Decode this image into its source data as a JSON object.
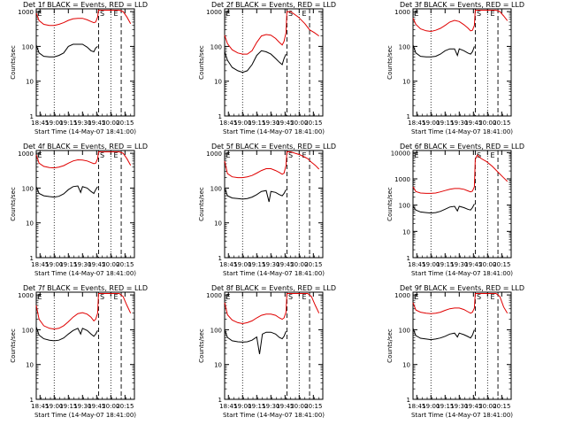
{
  "colors": {
    "events": "#000000",
    "lld": "#e00000",
    "axis": "#000000",
    "background": "#ffffff"
  },
  "shared": {
    "ylabel": "Counts/sec",
    "xlabel": "Start Time (14-May-07 18:41:00)",
    "x_tick_labels": [
      "18:45",
      "19:00",
      "19:15",
      "19:30",
      "19:45",
      "20:00",
      "20:15"
    ],
    "x_tick_minutes": [
      4,
      19,
      34,
      49,
      64,
      79,
      94
    ],
    "x_range_minutes": [
      0,
      104
    ],
    "dotted_markers_minutes": [
      19,
      79
    ],
    "dashed_markers_minutes": [
      66,
      90
    ],
    "marker_labels": [
      {
        "text": "S",
        "minute": 66.5
      },
      {
        "text": "E",
        "minute": 81
      },
      {
        "text": "E",
        "minute": 0.5
      }
    ],
    "y_scale": "log"
  },
  "chart_data": [
    {
      "type": "line",
      "title": "Det 1f BLACK = Events, RED = LLD",
      "y_tick_labels": [
        "1",
        "10",
        "100",
        "1000"
      ],
      "ylim": [
        1,
        1200
      ],
      "series": [
        {
          "name": "Events",
          "x": [
            0,
            3,
            8,
            14,
            19,
            24,
            29,
            34,
            39,
            44,
            49,
            54,
            58,
            61,
            63,
            65
          ],
          "y": [
            110,
            65,
            52,
            50,
            50,
            55,
            65,
            100,
            115,
            115,
            115,
            95,
            75,
            70,
            90,
            100
          ]
        },
        {
          "name": "LLD",
          "x": [
            0,
            3,
            8,
            14,
            19,
            24,
            29,
            34,
            39,
            44,
            49,
            54,
            58,
            61,
            63,
            65,
            66,
            70,
            80,
            88,
            92,
            96,
            100
          ],
          "y": [
            900,
            550,
            430,
            400,
            400,
            430,
            480,
            560,
            620,
            640,
            640,
            580,
            520,
            480,
            500,
            700,
            1100,
            1100,
            1100,
            1100,
            1000,
            700,
            450
          ]
        }
      ]
    },
    {
      "type": "line",
      "title": "Det 2f BLACK = Events, RED = LLD",
      "y_tick_labels": [
        "1",
        "10",
        "100",
        "1000"
      ],
      "ylim": [
        1,
        1200
      ],
      "series": [
        {
          "name": "Events",
          "x": [
            0,
            3,
            8,
            14,
            19,
            24,
            29,
            34,
            39,
            44,
            49,
            54,
            58,
            61,
            63,
            65
          ],
          "y": [
            70,
            40,
            25,
            20,
            18,
            20,
            30,
            55,
            75,
            70,
            60,
            45,
            35,
            30,
            45,
            60
          ]
        },
        {
          "name": "LLD",
          "x": [
            0,
            3,
            8,
            14,
            19,
            24,
            29,
            34,
            39,
            44,
            49,
            54,
            58,
            61,
            63,
            65,
            66,
            70,
            78,
            85,
            90,
            95,
            100
          ],
          "y": [
            210,
            120,
            80,
            65,
            60,
            60,
            75,
            130,
            200,
            220,
            210,
            170,
            130,
            110,
            140,
            250,
            1000,
            1000,
            700,
            450,
            300,
            250,
            200
          ]
        }
      ]
    },
    {
      "type": "line",
      "title": "Det 3f BLACK = Events, RED = LLD",
      "y_tick_labels": [
        "1",
        "10",
        "100",
        "1000"
      ],
      "ylim": [
        1,
        1200
      ],
      "series": [
        {
          "name": "Events",
          "x": [
            0,
            3,
            8,
            14,
            19,
            24,
            29,
            34,
            39,
            44,
            47,
            49,
            54,
            58,
            61,
            63,
            65
          ],
          "y": [
            110,
            65,
            52,
            50,
            50,
            52,
            60,
            75,
            85,
            85,
            55,
            85,
            75,
            65,
            60,
            70,
            100
          ]
        },
        {
          "name": "LLD",
          "x": [
            0,
            3,
            8,
            14,
            19,
            24,
            29,
            34,
            39,
            44,
            49,
            54,
            58,
            61,
            63,
            65,
            66,
            70,
            80,
            88,
            92,
            96,
            100
          ],
          "y": [
            650,
            430,
            320,
            280,
            270,
            290,
            330,
            400,
            500,
            560,
            520,
            420,
            340,
            280,
            290,
            400,
            1100,
            1100,
            1100,
            1100,
            1000,
            750,
            550
          ]
        }
      ]
    },
    {
      "type": "line",
      "title": "Det 4f BLACK = Events, RED = LLD",
      "y_tick_labels": [
        "1",
        "10",
        "100",
        "1000"
      ],
      "ylim": [
        1,
        1200
      ],
      "series": [
        {
          "name": "Events",
          "x": [
            0,
            3,
            8,
            14,
            19,
            24,
            29,
            34,
            39,
            44,
            47,
            49,
            54,
            58,
            61,
            63,
            65
          ],
          "y": [
            110,
            70,
            60,
            57,
            55,
            58,
            68,
            90,
            110,
            115,
            75,
            110,
            100,
            80,
            70,
            90,
            110
          ]
        },
        {
          "name": "LLD",
          "x": [
            0,
            3,
            8,
            14,
            19,
            24,
            29,
            34,
            39,
            44,
            49,
            54,
            58,
            61,
            63,
            65,
            66,
            70,
            80,
            88,
            92,
            96,
            100
          ],
          "y": [
            900,
            520,
            420,
            390,
            380,
            400,
            440,
            520,
            600,
            650,
            640,
            600,
            540,
            500,
            520,
            700,
            1100,
            1100,
            1100,
            1100,
            1000,
            700,
            450
          ]
        }
      ]
    },
    {
      "type": "line",
      "title": "Det 5f BLACK = Events, RED = LLD",
      "y_tick_labels": [
        "1",
        "10",
        "100",
        "1000"
      ],
      "ylim": [
        1,
        1200
      ],
      "series": [
        {
          "name": "Events",
          "x": [
            0,
            3,
            8,
            14,
            19,
            24,
            29,
            34,
            39,
            44,
            47,
            49,
            54,
            58,
            61,
            63,
            65
          ],
          "y": [
            100,
            60,
            52,
            50,
            48,
            50,
            55,
            65,
            80,
            85,
            40,
            80,
            75,
            65,
            60,
            70,
            90
          ]
        },
        {
          "name": "LLD",
          "x": [
            0,
            3,
            8,
            14,
            19,
            24,
            29,
            34,
            39,
            44,
            49,
            54,
            58,
            61,
            63,
            65,
            66,
            70,
            80,
            88,
            92,
            96,
            100
          ],
          "y": [
            600,
            260,
            210,
            200,
            200,
            210,
            230,
            270,
            320,
            360,
            360,
            320,
            280,
            250,
            270,
            450,
            1100,
            1100,
            900,
            700,
            550,
            450,
            350
          ]
        }
      ]
    },
    {
      "type": "line",
      "title": "Det 6f BLACK = Events, RED = LLD",
      "y_tick_labels": [
        "1",
        "10",
        "100",
        "1000",
        "10000"
      ],
      "ylim": [
        1,
        12000
      ],
      "series": [
        {
          "name": "Events",
          "x": [
            0,
            3,
            8,
            14,
            19,
            24,
            29,
            34,
            39,
            44,
            47,
            49,
            54,
            58,
            61,
            63,
            65
          ],
          "y": [
            90,
            65,
            55,
            52,
            50,
            52,
            58,
            70,
            85,
            90,
            60,
            90,
            80,
            70,
            65,
            80,
            110
          ]
        },
        {
          "name": "LLD",
          "x": [
            0,
            3,
            8,
            14,
            19,
            24,
            29,
            34,
            39,
            44,
            49,
            54,
            58,
            61,
            63,
            65,
            66,
            68,
            72,
            78,
            84,
            90,
            95,
            100
          ],
          "y": [
            500,
            330,
            290,
            280,
            280,
            290,
            320,
            360,
            400,
            430,
            430,
            400,
            350,
            320,
            340,
            500,
            5500,
            8000,
            6000,
            4500,
            3000,
            1800,
            1200,
            800
          ]
        }
      ]
    },
    {
      "type": "line",
      "title": "Det 7f BLACK = Events, RED = LLD",
      "y_tick_labels": [
        "1",
        "10",
        "100",
        "1000"
      ],
      "ylim": [
        1,
        1200
      ],
      "series": [
        {
          "name": "Events",
          "x": [
            0,
            3,
            8,
            14,
            19,
            24,
            29,
            34,
            39,
            44,
            47,
            49,
            54,
            58,
            61,
            63,
            65
          ],
          "y": [
            120,
            70,
            55,
            50,
            48,
            50,
            58,
            75,
            95,
            110,
            75,
            110,
            95,
            75,
            65,
            75,
            95
          ]
        },
        {
          "name": "LLD",
          "x": [
            0,
            3,
            8,
            14,
            19,
            24,
            29,
            34,
            39,
            44,
            49,
            54,
            58,
            61,
            63,
            65,
            66,
            70,
            80,
            88,
            92,
            96,
            100
          ],
          "y": [
            500,
            200,
            130,
            110,
            105,
            110,
            130,
            170,
            230,
            290,
            310,
            280,
            230,
            180,
            200,
            300,
            1100,
            1100,
            1100,
            1100,
            900,
            500,
            300
          ]
        }
      ]
    },
    {
      "type": "line",
      "title": "Det 8f BLACK = Events, RED = LLD",
      "y_tick_labels": [
        "1",
        "10",
        "100",
        "1000"
      ],
      "ylim": [
        1,
        1200
      ],
      "series": [
        {
          "name": "Events",
          "x": [
            0,
            3,
            8,
            14,
            19,
            24,
            29,
            34,
            37,
            40,
            44,
            49,
            54,
            58,
            61,
            63,
            65
          ],
          "y": [
            100,
            60,
            48,
            45,
            44,
            45,
            50,
            62,
            20,
            75,
            85,
            85,
            75,
            60,
            55,
            65,
            90
          ]
        },
        {
          "name": "LLD",
          "x": [
            0,
            3,
            8,
            14,
            19,
            24,
            29,
            34,
            39,
            44,
            49,
            54,
            58,
            61,
            63,
            65,
            66,
            70,
            80,
            88,
            92,
            96,
            100
          ],
          "y": [
            600,
            270,
            190,
            160,
            150,
            160,
            180,
            220,
            260,
            280,
            280,
            260,
            220,
            200,
            220,
            320,
            1100,
            1100,
            1100,
            1100,
            900,
            500,
            300
          ]
        }
      ]
    },
    {
      "type": "line",
      "title": "Det 9f BLACK = Events, RED = LLD",
      "y_tick_labels": [
        "1",
        "10",
        "100",
        "1000"
      ],
      "ylim": [
        1,
        1200
      ],
      "series": [
        {
          "name": "Events",
          "x": [
            0,
            3,
            8,
            14,
            19,
            24,
            29,
            34,
            39,
            44,
            47,
            49,
            54,
            58,
            61,
            63,
            65
          ],
          "y": [
            110,
            68,
            57,
            54,
            52,
            54,
            58,
            65,
            75,
            80,
            62,
            80,
            72,
            64,
            58,
            70,
            100
          ]
        },
        {
          "name": "LLD",
          "x": [
            0,
            3,
            8,
            14,
            19,
            24,
            29,
            34,
            39,
            44,
            49,
            54,
            58,
            61,
            63,
            65,
            66,
            70,
            80,
            88,
            92,
            96,
            100
          ],
          "y": [
            600,
            370,
            320,
            300,
            290,
            300,
            320,
            360,
            400,
            420,
            420,
            380,
            330,
            300,
            320,
            420,
            1100,
            1100,
            1100,
            1100,
            900,
            450,
            300
          ]
        }
      ]
    }
  ]
}
